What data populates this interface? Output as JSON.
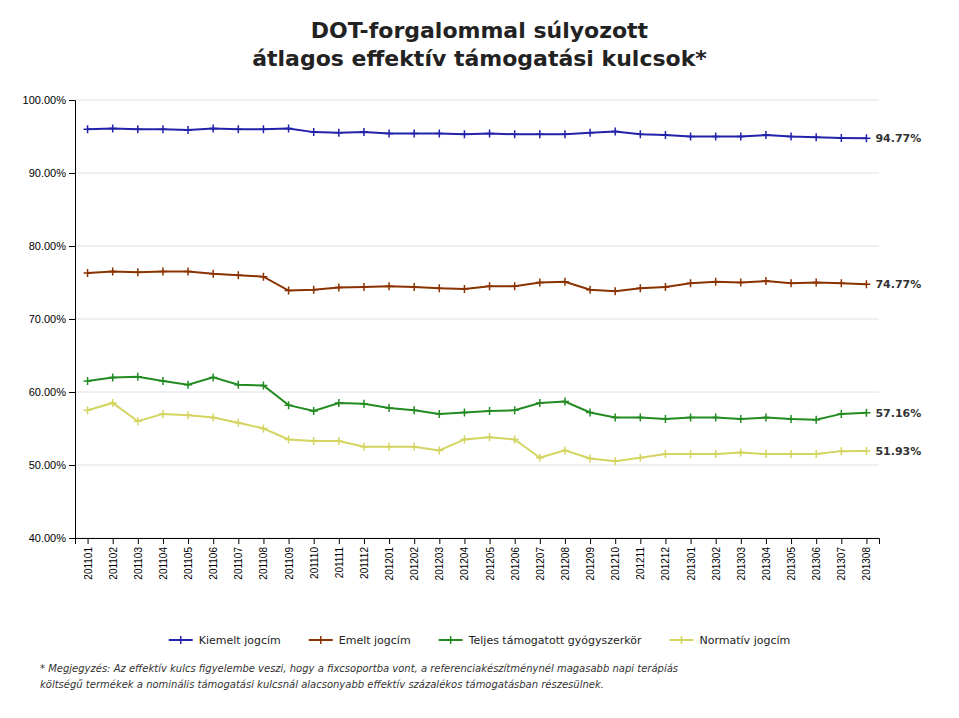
{
  "chart_data": {
    "type": "line",
    "title": [
      "DOT-forgalommal súlyozott",
      "átlagos effektív támogatási kulcsok*"
    ],
    "categories": [
      "201101",
      "201102",
      "201103",
      "201104",
      "201105",
      "201106",
      "201107",
      "201108",
      "201109",
      "201110",
      "201111",
      "201112",
      "201201",
      "201202",
      "201203",
      "201204",
      "201205",
      "201206",
      "201207",
      "201208",
      "201209",
      "201210",
      "201211",
      "201212",
      "201301",
      "201302",
      "201303",
      "201304",
      "201305",
      "201306",
      "201307",
      "201308"
    ],
    "series": [
      {
        "name": "Kiemelt jogcím",
        "color": "#2222aa",
        "marker": "plus",
        "values": [
          96.0,
          96.1,
          96.0,
          96.0,
          95.9,
          96.1,
          96.0,
          96.0,
          96.1,
          95.6,
          95.5,
          95.6,
          95.4,
          95.4,
          95.4,
          95.3,
          95.4,
          95.3,
          95.3,
          95.3,
          95.5,
          95.7,
          95.3,
          95.2,
          95.0,
          95.0,
          95.0,
          95.2,
          95.0,
          94.9,
          94.8,
          94.77
        ]
      },
      {
        "name": "Emelt jogcím",
        "color": "#8B3300",
        "marker": "plus",
        "values": [
          76.3,
          76.5,
          76.4,
          76.5,
          76.5,
          76.2,
          76.0,
          75.8,
          73.9,
          74.0,
          74.3,
          74.4,
          74.5,
          74.4,
          74.2,
          74.1,
          74.5,
          74.5,
          75.0,
          75.1,
          74.0,
          73.8,
          74.2,
          74.4,
          74.9,
          75.1,
          75.0,
          75.2,
          74.9,
          75.0,
          74.9,
          74.77
        ]
      },
      {
        "name": "Teljes támogatott gyógyszerkör",
        "color": "#228B22",
        "marker": "plus",
        "values": [
          61.5,
          62.0,
          62.1,
          61.5,
          61.0,
          62.0,
          61.0,
          60.9,
          58.2,
          57.4,
          58.5,
          58.4,
          57.8,
          57.5,
          57.0,
          57.2,
          57.4,
          57.5,
          58.5,
          58.7,
          57.2,
          56.5,
          56.5,
          56.3,
          56.5,
          56.5,
          56.3,
          56.5,
          56.3,
          56.2,
          57.0,
          57.16
        ]
      },
      {
        "name": "Normatív jogcím",
        "color": "#d4d460",
        "marker": "plus",
        "values": [
          57.5,
          58.5,
          56.0,
          57.0,
          56.8,
          56.5,
          55.8,
          55.0,
          53.5,
          53.3,
          53.3,
          52.5,
          52.5,
          52.5,
          52.0,
          53.5,
          53.8,
          53.5,
          51.0,
          52.0,
          50.9,
          50.5,
          51.0,
          51.5,
          51.5,
          51.5,
          51.7,
          51.5,
          51.5,
          51.5,
          51.9,
          51.93
        ]
      }
    ],
    "ylim": [
      40.0,
      100.0
    ],
    "yticks": [
      {
        "value": 40.0,
        "label": "40.00%"
      },
      {
        "value": 50.0,
        "label": "50.00%"
      },
      {
        "value": 60.0,
        "label": "60.00%"
      },
      {
        "value": 70.0,
        "label": "70.00%"
      },
      {
        "value": 80.0,
        "label": "80.00%"
      },
      {
        "value": 90.0,
        "label": "90.00%"
      },
      {
        "value": 100.0,
        "label": "100.00%"
      }
    ],
    "grid": true,
    "legend": "bottom",
    "annotations": [
      {
        "text": "94.77%",
        "x": "201308",
        "y": 94.77
      },
      {
        "text": "74.77%",
        "x": "201308",
        "y": 74.77
      },
      {
        "text": "57.16%",
        "x": "201308",
        "y": 57.16
      },
      {
        "text": "51.93%",
        "x": "201308",
        "y": 51.93
      },
      {
        "text": "* Megjegyzés: Az effektív kulcs figyelembe veszi, hogy a fixcsoportba vont, a referenciakészítménynél magasabb napi terápiás"
      },
      {
        "text": "költségű termékek a nominális támogatási kulcsnál alacsonyabb effektív százalékos támogatásban részesülnek."
      }
    ]
  }
}
